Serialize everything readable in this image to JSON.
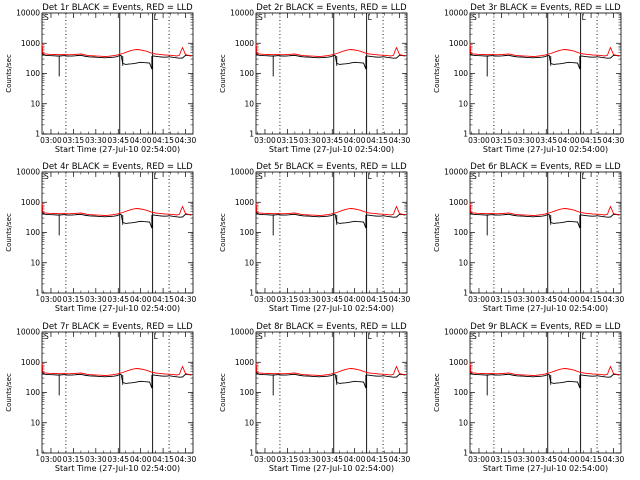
{
  "figure": {
    "xlabel": "Start Time (27-Jul-10 02:54:00)",
    "ylabel": "Counts/sec",
    "x_ticks": [
      "03:00",
      "03:15",
      "03:30",
      "03:45",
      "04:00",
      "04:15",
      "04:30"
    ],
    "y_ticks": [
      "1",
      "10",
      "100",
      "1000",
      "10000"
    ],
    "corner_markers": [
      "S",
      "L"
    ]
  },
  "colors": {
    "events": "#000000",
    "lld": "#ff0000",
    "axes": "#000000"
  },
  "chart_data": [
    {
      "type": "line",
      "title": "Det 1r BLACK = Events, RED = LLD"
    },
    {
      "type": "line",
      "title": "Det 2r BLACK = Events, RED = LLD"
    },
    {
      "type": "line",
      "title": "Det 3r BLACK = Events, RED = LLD"
    },
    {
      "type": "line",
      "title": "Det 4r BLACK = Events, RED = LLD"
    },
    {
      "type": "line",
      "title": "Det 5r BLACK = Events, RED = LLD"
    },
    {
      "type": "line",
      "title": "Det 6r BLACK = Events, RED = LLD"
    },
    {
      "type": "line",
      "title": "Det 7r BLACK = Events, RED = LLD"
    },
    {
      "type": "line",
      "title": "Det 8r BLACK = Events, RED = LLD"
    },
    {
      "type": "line",
      "title": "Det 9r BLACK = Events, RED = LLD"
    }
  ],
  "shared_axes": {
    "x_unit": "minutes after 02:54:00",
    "xlim": [
      0,
      101
    ],
    "ylim": [
      1,
      10000
    ],
    "y_scale": "log",
    "dotted_lines_x": [
      16,
      85
    ],
    "solid_lines_x": [
      52,
      74
    ],
    "events_series": {
      "name": "Events",
      "x": [
        0,
        0.5,
        2,
        5,
        8,
        10,
        12,
        15,
        16,
        18,
        20,
        22,
        24,
        26,
        28,
        30,
        32,
        34,
        36,
        38,
        40,
        42,
        44,
        46,
        48,
        50,
        52,
        53,
        54,
        56,
        58,
        60,
        62,
        64,
        66,
        68,
        70,
        72,
        73.5,
        74,
        75,
        76,
        78,
        80,
        82,
        84,
        85,
        86,
        88,
        90,
        92,
        94,
        96,
        98,
        100
      ],
      "y": [
        900,
        430,
        400,
        390,
        385,
        380,
        378,
        390,
        380,
        375,
        380,
        385,
        395,
        400,
        380,
        365,
        355,
        350,
        345,
        340,
        335,
        330,
        335,
        340,
        345,
        360,
        390,
        390,
        215,
        200,
        205,
        210,
        215,
        225,
        235,
        230,
        225,
        220,
        140,
        380,
        375,
        370,
        360,
        350,
        345,
        350,
        360,
        355,
        340,
        330,
        320,
        325,
        400,
        390,
        380
      ]
    },
    "lld_series": {
      "name": "LLD",
      "x": [
        0,
        0.5,
        2,
        5,
        8,
        10,
        12,
        15,
        16,
        18,
        20,
        22,
        24,
        26,
        28,
        30,
        32,
        34,
        36,
        38,
        40,
        42,
        44,
        46,
        48,
        50,
        52,
        54,
        56,
        58,
        60,
        62,
        64,
        66,
        68,
        70,
        72,
        74,
        76,
        78,
        80,
        82,
        84,
        86,
        88,
        90,
        92,
        93,
        94,
        95,
        96,
        98,
        100
      ],
      "y": [
        1000,
        470,
        440,
        430,
        425,
        420,
        418,
        430,
        420,
        415,
        420,
        425,
        435,
        440,
        420,
        400,
        390,
        385,
        380,
        375,
        370,
        365,
        370,
        380,
        390,
        405,
        430,
        460,
        500,
        540,
        580,
        610,
        620,
        600,
        570,
        540,
        500,
        460,
        440,
        430,
        420,
        410,
        405,
        400,
        390,
        380,
        400,
        560,
        720,
        560,
        420,
        400,
        390
      ]
    },
    "event_dips": [
      {
        "x": 11.5,
        "y": 80
      },
      {
        "x": 73.5,
        "y": 140
      },
      {
        "x": 54,
        "y": 180
      }
    ]
  }
}
